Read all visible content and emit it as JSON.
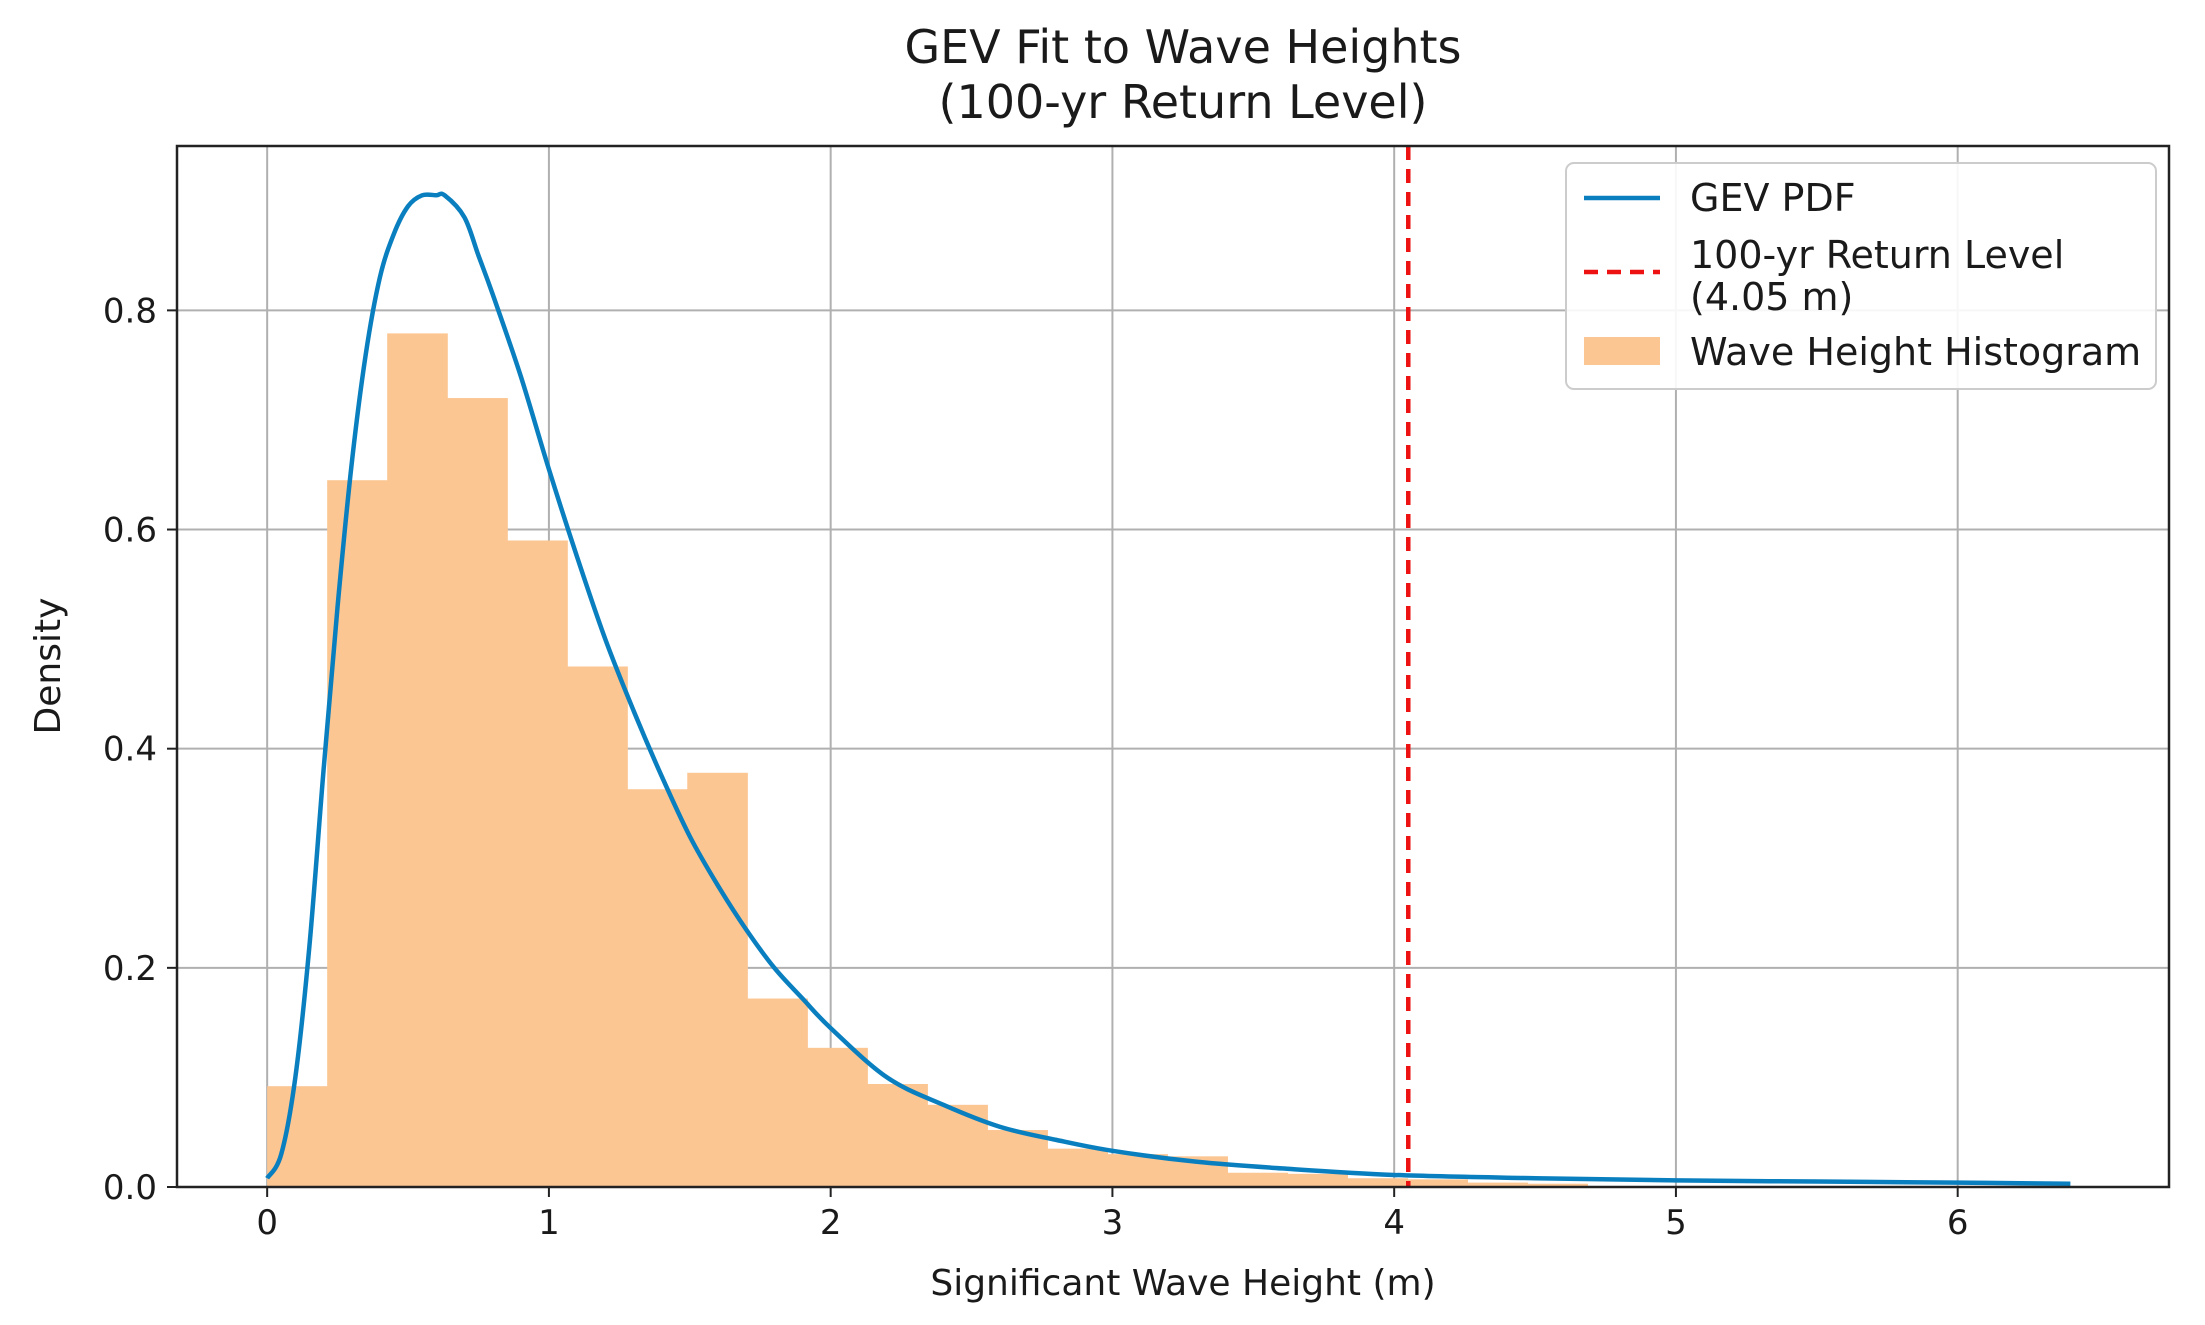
{
  "chart_data": {
    "type": "histogram+line",
    "title": [
      "GEV Fit to Wave Heights",
      "(100-yr Return Level)"
    ],
    "xlabel": "Significant Wave Height (m)",
    "ylabel": "Density",
    "xlim": [
      -0.32,
      6.75
    ],
    "ylim": [
      0,
      0.95
    ],
    "grid": true,
    "xticks": [
      0,
      1,
      2,
      3,
      4,
      5,
      6
    ],
    "xtick_labels": [
      "0",
      "1",
      "2",
      "3",
      "4",
      "5",
      "6"
    ],
    "yticks": [
      0.0,
      0.2,
      0.4,
      0.6,
      0.8
    ],
    "ytick_labels": [
      "0.0",
      "0.2",
      "0.4",
      "0.6",
      "0.8"
    ],
    "legend_position": "top-right",
    "histogram": {
      "name": "Wave Height Histogram",
      "color": "#fcc692",
      "bin_edges": [
        0.0,
        0.213,
        0.426,
        0.639,
        0.852,
        1.065,
        1.278,
        1.491,
        1.704,
        1.917,
        2.13,
        2.343,
        2.556,
        2.769,
        2.982,
        3.195,
        3.408,
        3.621,
        3.834,
        4.047,
        4.26,
        4.473,
        4.686
      ],
      "densities": [
        0.092,
        0.645,
        0.779,
        0.72,
        0.59,
        0.475,
        0.363,
        0.378,
        0.172,
        0.127,
        0.094,
        0.075,
        0.052,
        0.035,
        0.03,
        0.028,
        0.013,
        0.012,
        0.008,
        0.007,
        0.004,
        0.003
      ]
    },
    "gev_pdf": {
      "name": "GEV PDF",
      "color": "#0a7fbf",
      "x": [
        0.0,
        0.05,
        0.1,
        0.15,
        0.2,
        0.25,
        0.3,
        0.35,
        0.4,
        0.45,
        0.5,
        0.55,
        0.6,
        0.63,
        0.7,
        0.75,
        0.8,
        0.9,
        1.0,
        1.1,
        1.2,
        1.3,
        1.4,
        1.5,
        1.6,
        1.7,
        1.8,
        1.9,
        2.0,
        2.2,
        2.4,
        2.6,
        2.8,
        3.0,
        3.3,
        3.6,
        4.0,
        4.5,
        5.0,
        5.5,
        6.0,
        6.4
      ],
      "y": [
        0.008,
        0.03,
        0.1,
        0.22,
        0.38,
        0.53,
        0.66,
        0.76,
        0.83,
        0.87,
        0.895,
        0.905,
        0.905,
        0.905,
        0.885,
        0.85,
        0.815,
        0.74,
        0.655,
        0.575,
        0.5,
        0.435,
        0.375,
        0.32,
        0.275,
        0.235,
        0.2,
        0.172,
        0.145,
        0.1,
        0.075,
        0.055,
        0.043,
        0.033,
        0.023,
        0.017,
        0.011,
        0.008,
        0.006,
        0.005,
        0.004,
        0.003
      ]
    },
    "return_level": {
      "name": "100-yr Return Level",
      "value_label": "(4.05 m)",
      "x": 4.05,
      "color": "#ee1111",
      "style": "dashed"
    }
  }
}
